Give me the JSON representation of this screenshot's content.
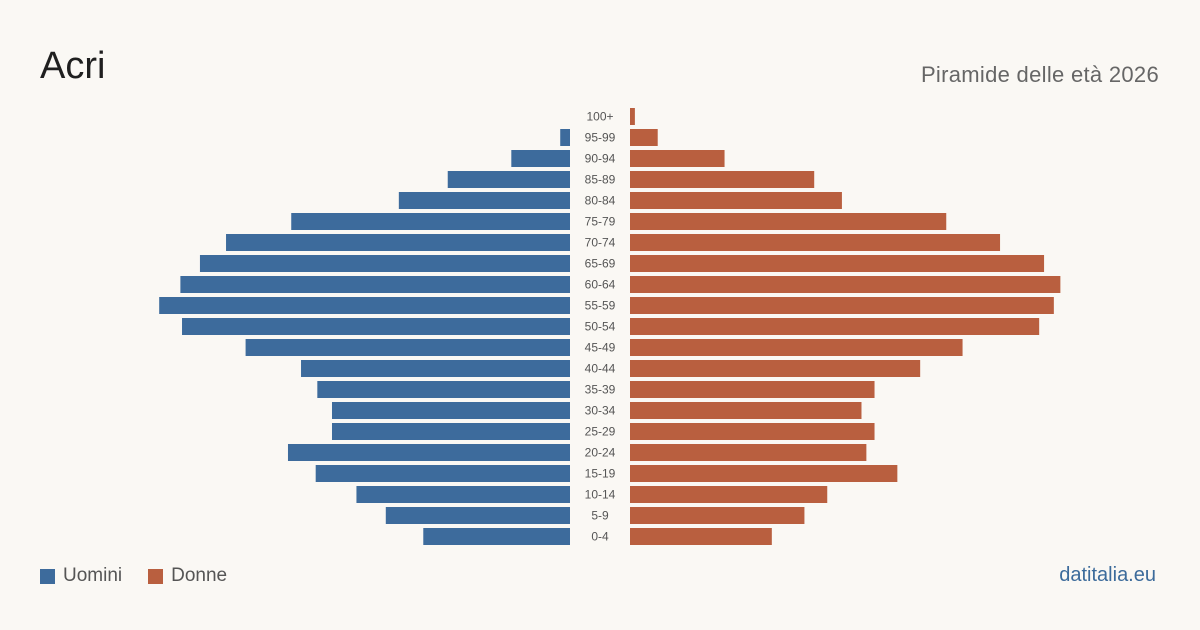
{
  "header": {
    "title": "Acri",
    "subtitle": "Piramide delle età 2026"
  },
  "legend": {
    "men_label": "Uomini",
    "women_label": "Donne"
  },
  "brand": "datitalia.eu",
  "colors": {
    "men": "#3d6b9c",
    "women": "#b95f3f",
    "background": "#faf8f4"
  },
  "chart_data": {
    "type": "bar",
    "orientation": "horizontal-pyramid",
    "categories": [
      "100+",
      "95-99",
      "90-94",
      "85-89",
      "80-84",
      "75-79",
      "70-74",
      "65-69",
      "60-64",
      "55-59",
      "50-54",
      "45-49",
      "40-44",
      "35-39",
      "30-34",
      "25-29",
      "20-24",
      "15-19",
      "10-14",
      "5-9",
      "0-4"
    ],
    "series": [
      {
        "name": "Uomini",
        "values": [
          0,
          6,
          36,
          75,
          105,
          171,
          211,
          227,
          239,
          252,
          238,
          199,
          165,
          155,
          146,
          146,
          173,
          156,
          131,
          113,
          90
        ]
      },
      {
        "name": "Donne",
        "values": [
          3,
          17,
          58,
          113,
          130,
          194,
          227,
          254,
          264,
          260,
          251,
          204,
          178,
          150,
          142,
          150,
          145,
          164,
          121,
          107,
          87
        ]
      }
    ],
    "xlim": [
      0,
      265
    ],
    "grid": false,
    "legend_position": "bottom-left"
  }
}
